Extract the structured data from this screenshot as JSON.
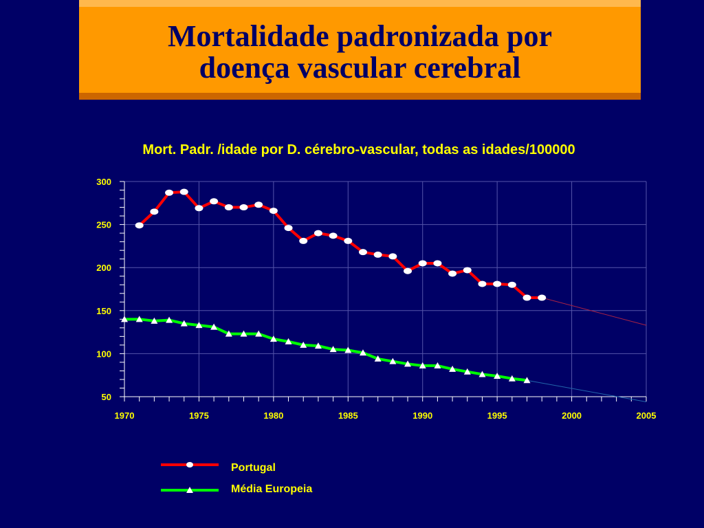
{
  "title": {
    "line1": "Mortalidade padronizada por",
    "line2": "doença vascular cerebral"
  },
  "colors": {
    "background": "#000066",
    "banner": "#ff9900",
    "text": "#ffff00",
    "portugal": "#ff0000",
    "europe": "#00ff00",
    "grid": "#5555aa"
  },
  "chart_data": {
    "type": "line",
    "title": "Mort. Padr. /idade por D. cérebro-vascular, todas as idades/100000",
    "xlim": [
      1970,
      2005
    ],
    "ylim": [
      50,
      300
    ],
    "x_ticks": [
      "1970",
      "1975",
      "1980",
      "1985",
      "1990",
      "1995",
      "2000",
      "2005"
    ],
    "y_ticks": [
      "300",
      "250",
      "200",
      "150",
      "100",
      "50"
    ],
    "grid": true,
    "legend_position": "bottom-center",
    "series": [
      {
        "name": "Portugal",
        "marker": "circle",
        "x": [
          1971,
          1972,
          1973,
          1974,
          1975,
          1976,
          1977,
          1978,
          1979,
          1980,
          1981,
          1982,
          1983,
          1984,
          1985,
          1986,
          1987,
          1988,
          1989,
          1990,
          1991,
          1992,
          1993,
          1994,
          1995,
          1996,
          1997,
          1998
        ],
        "values": [
          249,
          265,
          287,
          288,
          269,
          277,
          270,
          270,
          273,
          266,
          246,
          231,
          240,
          237,
          231,
          218,
          215,
          213,
          196,
          205,
          205,
          193,
          197,
          181,
          181,
          180,
          165,
          165
        ],
        "trend": {
          "x": [
            1998,
            2005
          ],
          "values": [
            165,
            133
          ]
        }
      },
      {
        "name": "Média Europeia",
        "marker": "triangle",
        "x": [
          1970,
          1971,
          1972,
          1973,
          1974,
          1975,
          1976,
          1977,
          1978,
          1979,
          1980,
          1981,
          1982,
          1983,
          1984,
          1985,
          1986,
          1987,
          1988,
          1989,
          1990,
          1991,
          1992,
          1993,
          1994,
          1995,
          1996,
          1997
        ],
        "values": [
          140,
          140,
          138,
          139,
          135,
          133,
          131,
          123,
          123,
          123,
          117,
          114,
          110,
          109,
          105,
          104,
          101,
          94,
          91,
          88,
          86,
          86,
          82,
          79,
          76,
          74,
          71,
          69
        ],
        "trend": {
          "x": [
            1997,
            2005
          ],
          "values": [
            69,
            44
          ]
        }
      }
    ]
  }
}
